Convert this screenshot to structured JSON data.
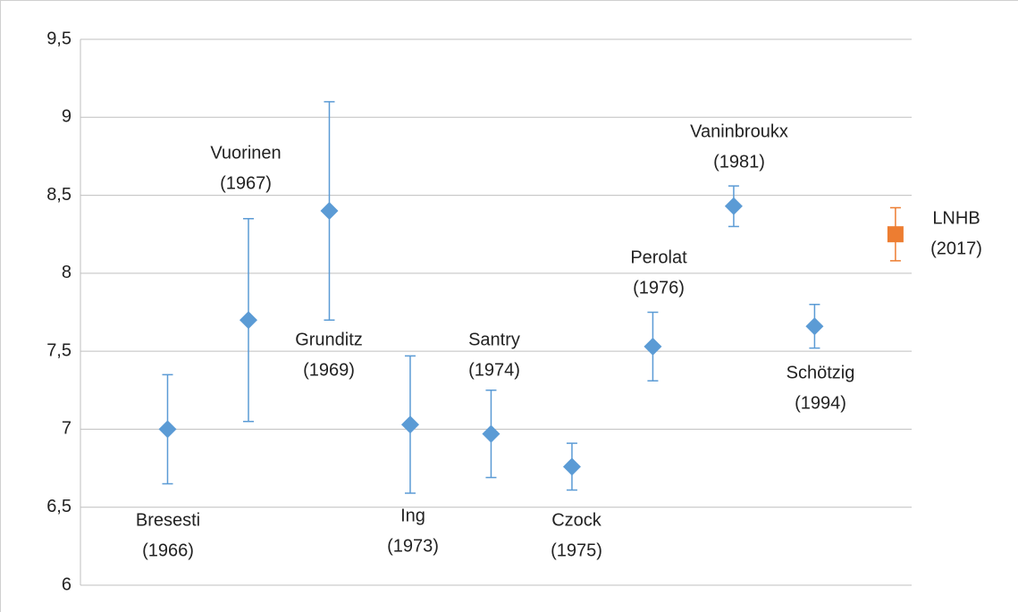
{
  "chart_data": {
    "type": "scatter",
    "x": [
      1,
      2,
      3,
      4,
      5,
      6,
      7,
      8,
      9,
      10
    ],
    "values": [
      7.0,
      7.7,
      8.4,
      7.03,
      6.97,
      6.76,
      7.53,
      8.43,
      7.66,
      8.25
    ],
    "errors": [
      0.35,
      0.65,
      0.7,
      0.44,
      0.28,
      0.15,
      0.22,
      0.13,
      0.14,
      0.17
    ],
    "labels": [
      [
        "Bresesti",
        "(1966)"
      ],
      [
        "Vuorinen",
        "(1967)"
      ],
      [
        "Grunditz",
        "(1969)"
      ],
      [
        "Ing",
        "(1973)"
      ],
      [
        "Santry",
        "(1974)"
      ],
      [
        "Czock",
        "(1975)"
      ],
      [
        "Perolat",
        "(1976)"
      ],
      [
        "Vaninbroukx",
        "(1981)"
      ],
      [
        "Schötzig",
        "(1994)"
      ],
      [
        "LNHB",
        "(2017)"
      ]
    ],
    "colors": [
      "#5b9bd5",
      "#5b9bd5",
      "#5b9bd5",
      "#5b9bd5",
      "#5b9bd5",
      "#5b9bd5",
      "#5b9bd5",
      "#5b9bd5",
      "#5b9bd5",
      "#ed7d31"
    ],
    "markers": [
      "diamond",
      "diamond",
      "diamond",
      "diamond",
      "diamond",
      "diamond",
      "diamond",
      "diamond",
      "diamond",
      "square"
    ],
    "xlim": [
      0,
      10.2
    ],
    "ylim": [
      6,
      9.5
    ],
    "yticks": [
      6,
      {
        "value": 6.5,
        "label": "6,5"
      },
      7,
      {
        "value": 7.5,
        "label": "7,5"
      },
      8,
      {
        "value": 8.5,
        "label": "8,5"
      },
      9,
      {
        "value": 9.5,
        "label": "9,5"
      }
    ],
    "grid": true
  }
}
